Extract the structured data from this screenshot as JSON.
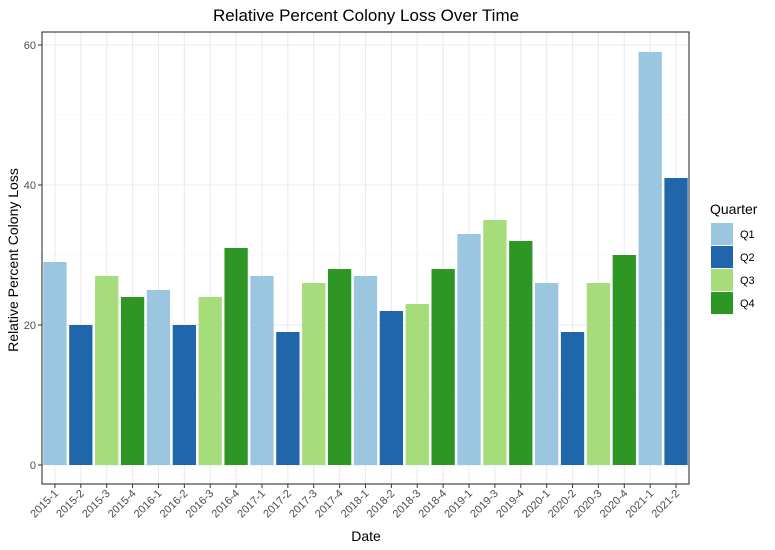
{
  "chart_data": {
    "type": "bar",
    "title": "Relative Percent Colony Loss Over Time",
    "xlabel": "Date",
    "ylabel": "Relative Percent Colony Loss",
    "ylim": [
      0,
      62
    ],
    "yticks": [
      0,
      20,
      40,
      60
    ],
    "grid": true,
    "legend_position": "right",
    "legend": {
      "title": "Quarter",
      "entries": [
        {
          "label": "Q1",
          "color": "#9ac6df"
        },
        {
          "label": "Q2",
          "color": "#1f66aa"
        },
        {
          "label": "Q3",
          "color": "#a6dc7a"
        },
        {
          "label": "Q4",
          "color": "#2e9624"
        }
      ]
    },
    "categories": [
      "2015-1",
      "2015-2",
      "2015-3",
      "2015-4",
      "2016-1",
      "2016-2",
      "2016-3",
      "2016-4",
      "2017-1",
      "2017-2",
      "2017-3",
      "2017-4",
      "2018-1",
      "2018-2",
      "2018-3",
      "2018-4",
      "2019-1",
      "2019-3",
      "2019-4",
      "2020-1",
      "2020-2",
      "2020-3",
      "2020-4",
      "2021-1",
      "2021-2"
    ],
    "quarters": [
      "Q1",
      "Q2",
      "Q3",
      "Q4",
      "Q1",
      "Q2",
      "Q3",
      "Q4",
      "Q1",
      "Q2",
      "Q3",
      "Q4",
      "Q1",
      "Q2",
      "Q3",
      "Q4",
      "Q1",
      "Q3",
      "Q4",
      "Q1",
      "Q2",
      "Q3",
      "Q4",
      "Q1",
      "Q2"
    ],
    "values": [
      29,
      20,
      27,
      24,
      25,
      20,
      24,
      31,
      27,
      19,
      26,
      28,
      27,
      22,
      23,
      28,
      33,
      35,
      32,
      26,
      19,
      26,
      30,
      59,
      41
    ]
  }
}
